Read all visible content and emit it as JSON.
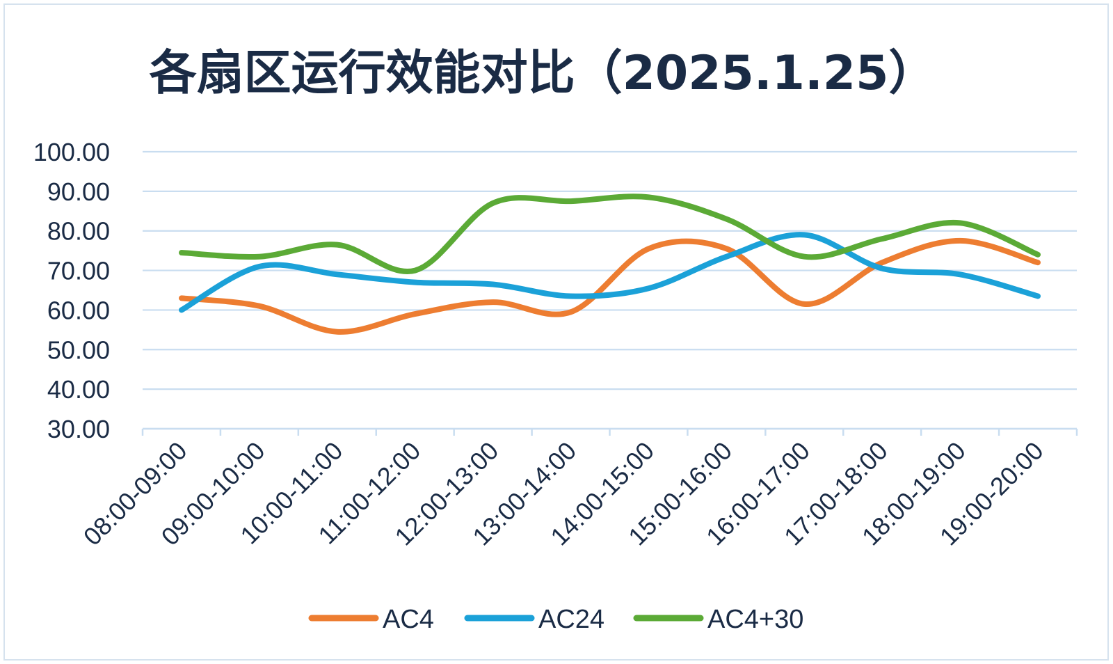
{
  "chart_data": {
    "type": "line",
    "title": "各扇区运行效能对比（2025.1.25）",
    "xlabel": "",
    "ylabel": "",
    "categories": [
      "08:00-09:00",
      "09:00-10:00",
      "10:00-11:00",
      "11:00-12:00",
      "12:00-13:00",
      "13:00-14:00",
      "14:00-15:00",
      "15:00-16:00",
      "16:00-17:00",
      "17:00-18:00",
      "18:00-19:00",
      "19:00-20:00"
    ],
    "ylim": [
      30,
      100
    ],
    "yticks": [
      "100.00",
      "90.00",
      "80.00",
      "70.00",
      "60.00",
      "50.00",
      "40.00",
      "30.00"
    ],
    "grid": true,
    "smooth": true,
    "legend": "bottom",
    "series": [
      {
        "name": "AC4",
        "color": "#ED7D31",
        "values": [
          63,
          61,
          54.5,
          59,
          62,
          59.5,
          75.5,
          75.5,
          61.5,
          72,
          77.5,
          72
        ]
      },
      {
        "name": "AC24",
        "color": "#1BA1D8",
        "values": [
          60,
          71,
          69,
          67,
          66.5,
          63.5,
          65.5,
          73.5,
          79,
          70.5,
          69,
          63.5
        ]
      },
      {
        "name": "AC4+30",
        "color": "#5BAA36",
        "values": [
          74.5,
          73.5,
          76.5,
          70,
          87,
          87.5,
          88.5,
          83,
          73.5,
          78,
          82,
          74
        ]
      }
    ]
  }
}
